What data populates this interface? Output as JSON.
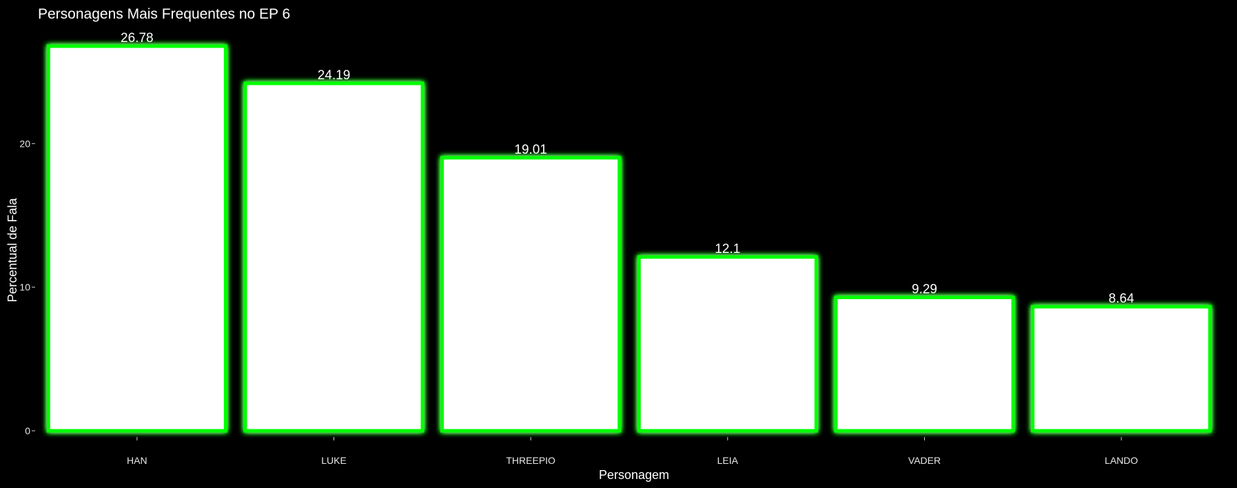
{
  "chart_data": {
    "type": "bar",
    "title": "Personagens Mais Frequentes no EP 6",
    "xlabel": "Personagem",
    "ylabel": "Percentual de Fala",
    "categories": [
      "HAN",
      "LUKE",
      "THREEPIO",
      "LEIA",
      "VADER",
      "LANDO"
    ],
    "values": [
      26.78,
      24.19,
      19.01,
      12.1,
      9.29,
      8.64
    ],
    "data_labels": [
      "26.78",
      "24.19",
      "19.01",
      "12.1",
      "9.29",
      "8.64"
    ],
    "yticks": [
      0,
      10,
      20
    ],
    "ylim": [
      0,
      26.78
    ],
    "grid": false,
    "legend": "none",
    "colors": {
      "background": "#000000",
      "bar_fill": "#ffffff",
      "bar_outline": "#00ff00",
      "text": "#ffffff"
    }
  }
}
